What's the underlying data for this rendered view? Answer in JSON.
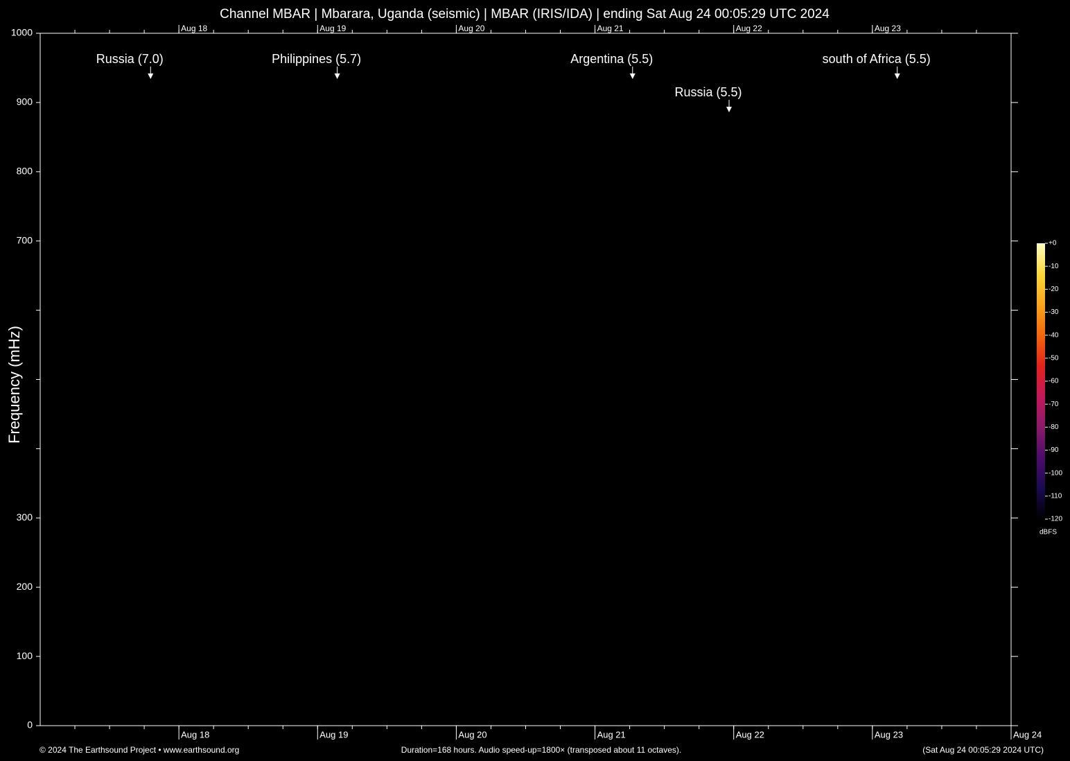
{
  "chart_data": {
    "type": "spectrogram",
    "title": "Channel MBAR | Mbarara, Uganda (seismic) | MBAR (IRIS/IDA) | ending Sat Aug 24 00:05:29 UTC 2024",
    "y_label": "Frequency (mHz)",
    "ylim": [
      0,
      1000
    ],
    "yticks": [
      0,
      100,
      200,
      300,
      700,
      800,
      900,
      1000
    ],
    "yticks_unlabeled": [
      400,
      500,
      600
    ],
    "xlim": [
      0,
      168
    ],
    "xticks": [
      {
        "value": 24,
        "label": "Aug 18"
      },
      {
        "value": 48,
        "label": "Aug 19"
      },
      {
        "value": 72,
        "label": "Aug 20"
      },
      {
        "value": 96,
        "label": "Aug 21"
      },
      {
        "value": 120,
        "label": "Aug 22"
      },
      {
        "value": 144,
        "label": "Aug 23"
      },
      {
        "value": 168,
        "label": "Aug 24"
      }
    ],
    "xticks_minor_step": 6,
    "background": "#000000",
    "events": [
      {
        "label": "Russia (7.0)",
        "x": 19.1
      },
      {
        "label": "Philippines (5.7)",
        "x": 51.4
      },
      {
        "label": "Argentina (5.5)",
        "x": 102.5
      },
      {
        "label": "Russia (5.5)",
        "x": 119.2
      },
      {
        "label": "south of Africa (5.5)",
        "x": 148.3
      }
    ],
    "colorbar": {
      "title": "dBFS",
      "lim": [
        -120,
        0
      ],
      "ticks": [
        {
          "value": 0,
          "label": "+0"
        },
        -10,
        -20,
        -30,
        -40,
        -50,
        -60,
        -70,
        -80,
        -90,
        -100,
        -110,
        -120
      ],
      "colors": [
        "#000000",
        "#1a0a50",
        "#4b0c6b",
        "#8a1a6a",
        "#c2185b",
        "#e3211c",
        "#f4670d",
        "#f9a51c",
        "#fbd83a",
        "#fcfdbf"
      ]
    },
    "footer_left": "© 2024 The Earthsound Project • www.earthsound.org",
    "footer_center": "Duration=168 hours. Audio speed-up=1800× (transposed about 11 octaves).",
    "footer_right": "(Sat Aug 24 00:05:29 2024 UTC)"
  }
}
